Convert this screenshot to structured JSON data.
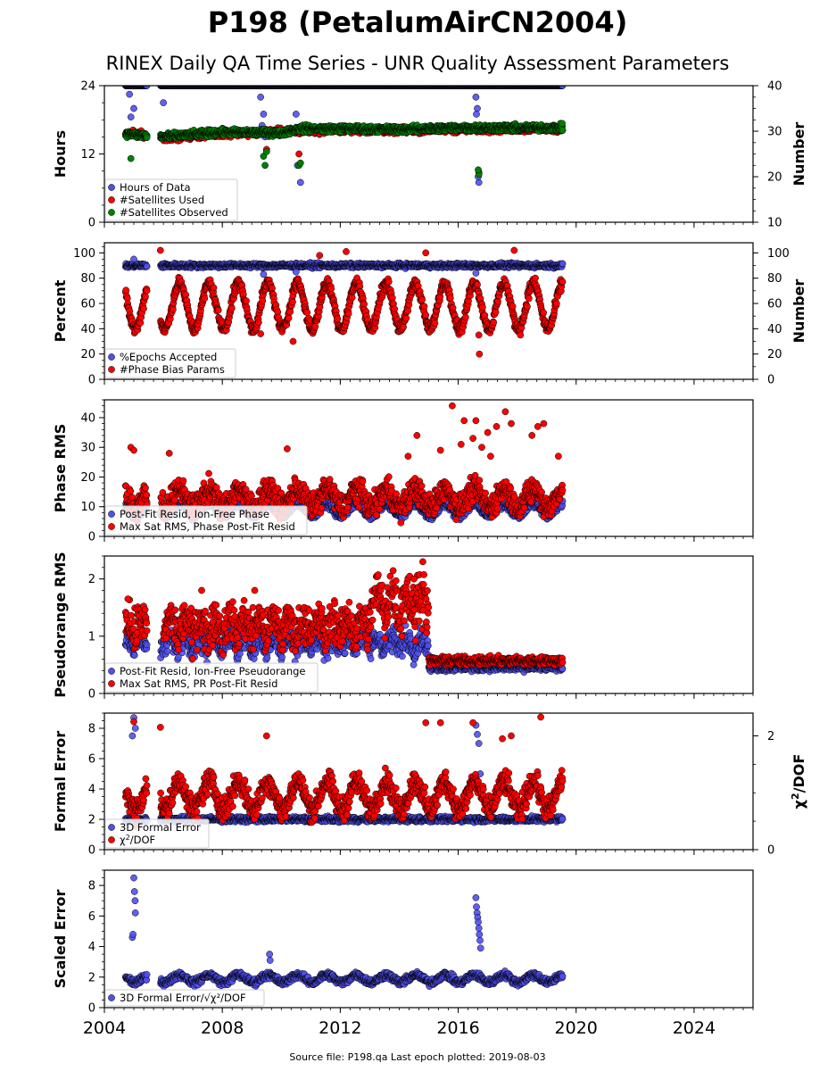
{
  "title": "P198 (PetalumAirCN2004)",
  "subtitle": "RINEX Daily QA Time Series - UNR Quality Assessment Parameters",
  "footer": "Source file: P198.qa Last epoch plotted: 2019-08-03",
  "colors": {
    "blue": "#4f4ff0",
    "red": "#ff0000",
    "green": "#008000",
    "edge": "#000000"
  },
  "x_axis": {
    "range": [
      2004.0,
      2026.0
    ],
    "ticks": [
      2004,
      2008,
      2012,
      2016,
      2020,
      2024
    ],
    "tick_labels": [
      "2004",
      "2008",
      "2012",
      "2016",
      "2020",
      "2024"
    ]
  },
  "chart_data": [
    {
      "type": "scatter",
      "ylabel": "Hours",
      "ylabel_right": "Number",
      "ylim": [
        0,
        24
      ],
      "yticks": [
        0,
        12,
        24
      ],
      "ylim_right": [
        10,
        40
      ],
      "yticks_right": [
        10,
        20,
        30,
        40
      ],
      "legend": "lower-left",
      "series": [
        {
          "name": "Hours of Data",
          "color": "#4f4ff0",
          "axis": "left",
          "baseline": 24.0,
          "noise": 0.0,
          "outliers": [
            [
              2004.9,
              18.5
            ],
            [
              2005.0,
              20.0
            ],
            [
              2004.85,
              22.5
            ],
            [
              2006.0,
              21.0
            ],
            [
              2009.3,
              22.0
            ],
            [
              2009.4,
              19.0
            ],
            [
              2009.35,
              17.0
            ],
            [
              2009.45,
              15.0
            ],
            [
              2010.5,
              19.0
            ],
            [
              2010.6,
              16.0
            ],
            [
              2010.65,
              7.0
            ],
            [
              2010.55,
              10.0
            ],
            [
              2016.6,
              22.0
            ],
            [
              2016.65,
              20.0
            ],
            [
              2016.62,
              19.0
            ],
            [
              2016.7,
              7.0
            ],
            [
              2016.68,
              8.0
            ]
          ]
        },
        {
          "name": "#Satellites Used",
          "color": "#ff0000",
          "axis": "right",
          "baseline": 29.0,
          "noise": 0.6,
          "trend": [
            [
              2004.7,
              29.5
            ],
            [
              2005.4,
              29.2
            ],
            [
              2006.0,
              28.5
            ],
            [
              2008.0,
              29.5
            ],
            [
              2010.5,
              30.0
            ],
            [
              2012.0,
              30.3
            ],
            [
              2014.0,
              30.2
            ],
            [
              2016.0,
              30.4
            ],
            [
              2018.0,
              30.5
            ],
            [
              2019.6,
              30.5
            ]
          ],
          "outliers": [
            [
              2009.5,
              26.0
            ],
            [
              2010.6,
              25.0
            ],
            [
              2016.7,
              21.0
            ]
          ]
        },
        {
          "name": "#Satellites Observed",
          "color": "#008000",
          "axis": "right",
          "baseline": 29.5,
          "noise": 0.6,
          "trend": [
            [
              2004.7,
              29.5
            ],
            [
              2005.4,
              29.0
            ],
            [
              2006.0,
              28.8
            ],
            [
              2007.0,
              29.3
            ],
            [
              2008.0,
              29.8
            ],
            [
              2010.0,
              29.6
            ],
            [
              2010.6,
              30.6
            ],
            [
              2012.0,
              30.6
            ],
            [
              2014.0,
              30.4
            ],
            [
              2016.0,
              30.8
            ],
            [
              2018.0,
              30.8
            ],
            [
              2019.6,
              30.8
            ]
          ],
          "outliers": [
            [
              2004.9,
              24.0
            ],
            [
              2009.4,
              24.5
            ],
            [
              2009.45,
              22.5
            ],
            [
              2009.5,
              25.5
            ],
            [
              2010.6,
              22.5
            ],
            [
              2010.65,
              23.0
            ],
            [
              2016.7,
              20.5
            ],
            [
              2016.68,
              21.5
            ]
          ]
        }
      ]
    },
    {
      "type": "scatter",
      "ylabel": "Percent",
      "ylabel_right": "Number",
      "ylim": [
        0,
        108
      ],
      "yticks": [
        0,
        20,
        40,
        60,
        80,
        100
      ],
      "ylim_right": [
        0,
        108
      ],
      "yticks_right": [
        0,
        20,
        40,
        60,
        80,
        100
      ],
      "legend": "lower-left",
      "series": [
        {
          "name": "%Epochs Accepted",
          "color": "#4f4ff0",
          "axis": "left",
          "baseline": 90.0,
          "noise": 1.5,
          "outliers": [
            [
              2005.0,
              95.0
            ],
            [
              2009.4,
              83.0
            ],
            [
              2010.5,
              85.0
            ],
            [
              2016.6,
              84.0
            ]
          ]
        },
        {
          "name": "#Phase Bias Params",
          "color": "#ff0000",
          "axis": "right",
          "baseline": 58.0,
          "noise": 4.0,
          "seasonal": 18.0,
          "outliers": [
            [
              2005.9,
              102.0
            ],
            [
              2009.3,
              36.0
            ],
            [
              2010.4,
              30.0
            ],
            [
              2016.7,
              35.0
            ],
            [
              2016.72,
              20.0
            ],
            [
              2017.9,
              102.0
            ],
            [
              2012.2,
              101.0
            ],
            [
              2011.3,
              98.0
            ],
            [
              2014.9,
              100.0
            ]
          ]
        }
      ]
    },
    {
      "type": "scatter",
      "ylabel": "Phase RMS",
      "ylim": [
        0,
        46
      ],
      "yticks": [
        0,
        10,
        20,
        30,
        40
      ],
      "legend": "lower-left",
      "series": [
        {
          "name": "Post-Fit Resid, Ion-Free Phase",
          "color": "#4f4ff0",
          "axis": "left",
          "baseline": 9.0,
          "noise": 1.2,
          "seasonal": 2.0
        },
        {
          "name": "Max Sat RMS, Phase Post-Fit Resid",
          "color": "#ff0000",
          "axis": "left",
          "baseline": 13.0,
          "noise": 3.5,
          "seasonal": 3.0,
          "outliers": [
            [
              2004.9,
              30.0
            ],
            [
              2005.0,
              29.0
            ],
            [
              2006.2,
              28.0
            ],
            [
              2010.2,
              29.5
            ],
            [
              2014.6,
              34.0
            ],
            [
              2015.8,
              44.0
            ],
            [
              2016.1,
              31.0
            ],
            [
              2016.2,
              39.0
            ],
            [
              2016.5,
              33.0
            ],
            [
              2016.6,
              39.0
            ],
            [
              2016.8,
              30.0
            ],
            [
              2017.0,
              35.0
            ],
            [
              2017.1,
              27.0
            ],
            [
              2017.3,
              37.0
            ],
            [
              2017.6,
              42.0
            ],
            [
              2017.8,
              38.0
            ],
            [
              2018.5,
              34.0
            ],
            [
              2018.7,
              37.0
            ],
            [
              2018.9,
              38.0
            ],
            [
              2019.4,
              27.0
            ],
            [
              2015.4,
              29.0
            ],
            [
              2014.3,
              27.0
            ]
          ]
        }
      ]
    },
    {
      "type": "scatter",
      "ylabel": "Pseudorange RMS",
      "ylim": [
        0,
        2.4
      ],
      "yticks": [
        0,
        1,
        2
      ],
      "legend": "lower-left",
      "series": [
        {
          "name": "Post-Fit Resid, Ion-Free Pseudorange",
          "color": "#4f4ff0",
          "axis": "left",
          "segments": [
            [
              2004.7,
              2015.0,
              0.75,
              0.18
            ],
            [
              2015.0,
              2019.6,
              0.45,
              0.05
            ]
          ]
        },
        {
          "name": "Max Sat RMS, PR Post-Fit Resid",
          "color": "#ff0000",
          "axis": "left",
          "segments": [
            [
              2004.7,
              2005.5,
              0.95,
              0.3
            ],
            [
              2006.0,
              2013.0,
              0.95,
              0.3
            ],
            [
              2013.0,
              2015.0,
              1.3,
              0.4
            ],
            [
              2015.0,
              2019.6,
              0.57,
              0.06
            ]
          ],
          "outliers": [
            [
              2004.8,
              1.65
            ],
            [
              2007.3,
              1.8
            ],
            [
              2009.1,
              1.8
            ],
            [
              2014.5,
              2.0
            ],
            [
              2014.8,
              2.3
            ],
            [
              2013.6,
              1.85
            ]
          ]
        }
      ]
    },
    {
      "type": "scatter",
      "ylabel": "Formal Error",
      "ylabel_right": "χ²/DOF",
      "ylim": [
        0,
        9
      ],
      "yticks": [
        0,
        2,
        4,
        6,
        8
      ],
      "ylim_right": [
        0,
        2.4
      ],
      "yticks_right": [
        0,
        2
      ],
      "legend": "lower-left",
      "series": [
        {
          "name": "3D Formal Error",
          "color": "#4f4ff0",
          "axis": "left",
          "baseline": 2.0,
          "noise": 0.15,
          "outliers": [
            [
              2005.0,
              8.7
            ],
            [
              2004.95,
              7.5
            ],
            [
              2005.05,
              8.0
            ],
            [
              2016.6,
              8.2
            ],
            [
              2016.65,
              7.6
            ],
            [
              2016.7,
              7.0
            ],
            [
              2016.75,
              5.0
            ]
          ]
        },
        {
          "name": "χ²/DOF",
          "color": "#ff0000",
          "axis": "right",
          "baseline": 0.95,
          "noise": 0.18,
          "seasonal": 0.25,
          "outliers": [
            [
              2005.0,
              2.25
            ],
            [
              2005.9,
              2.15
            ],
            [
              2009.5,
              2.0
            ],
            [
              2014.9,
              2.23
            ],
            [
              2015.4,
              2.23
            ],
            [
              2016.5,
              2.23
            ],
            [
              2018.8,
              2.33
            ],
            [
              2017.5,
              1.95
            ],
            [
              2017.8,
              2.0
            ]
          ]
        }
      ]
    },
    {
      "type": "scatter",
      "ylabel": "Scaled Error",
      "ylim": [
        0,
        9
      ],
      "yticks": [
        0,
        2,
        4,
        6,
        8
      ],
      "legend": "lower-left",
      "series": [
        {
          "name": "3D Formal Error/√χ²/DOF",
          "color": "#4f4ff0",
          "axis": "left",
          "baseline": 1.9,
          "noise": 0.2,
          "seasonal": 0.25,
          "outliers": [
            [
              2005.0,
              8.5
            ],
            [
              2005.02,
              7.6
            ],
            [
              2005.04,
              7.0
            ],
            [
              2005.05,
              6.2
            ],
            [
              2004.95,
              4.6
            ],
            [
              2004.97,
              4.8
            ],
            [
              2009.6,
              3.5
            ],
            [
              2009.62,
              3.1
            ],
            [
              2016.6,
              7.2
            ],
            [
              2016.62,
              6.6
            ],
            [
              2016.64,
              6.2
            ],
            [
              2016.66,
              5.9
            ],
            [
              2016.68,
              5.6
            ],
            [
              2016.7,
              5.2
            ],
            [
              2016.72,
              4.8
            ],
            [
              2016.74,
              4.4
            ],
            [
              2016.76,
              3.9
            ]
          ]
        }
      ]
    }
  ]
}
